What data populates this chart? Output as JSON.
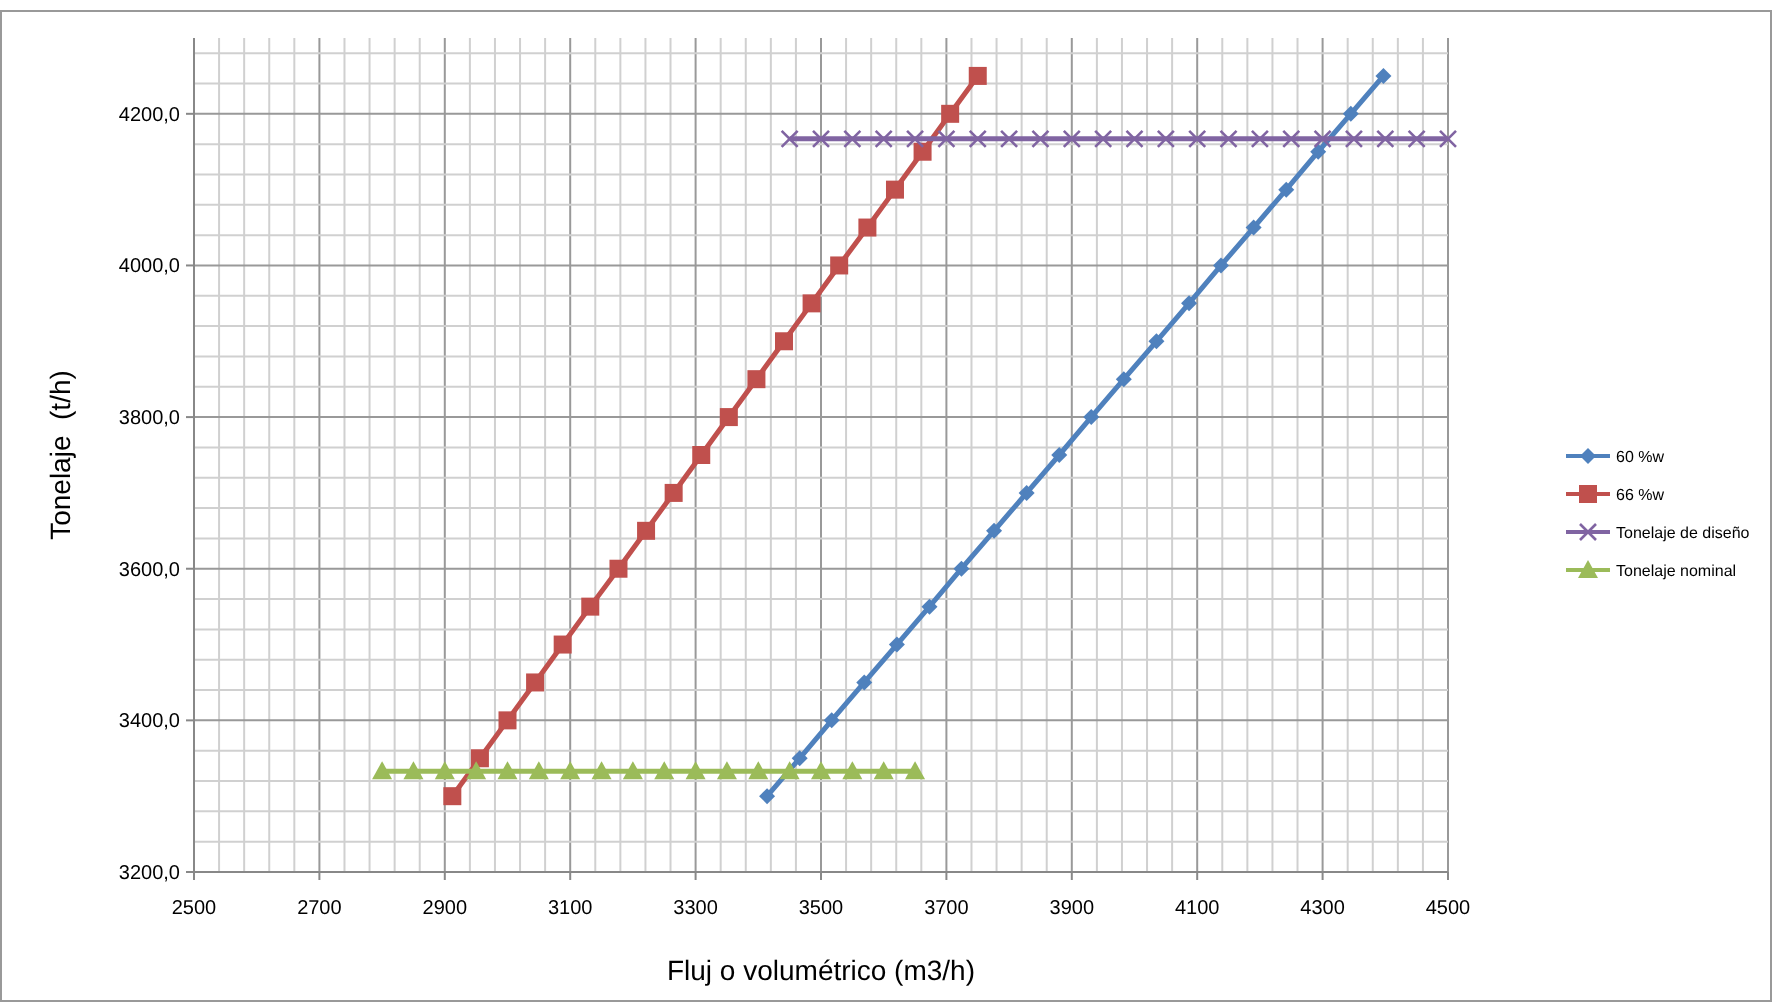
{
  "chart_data": {
    "type": "line",
    "xlabel": "Fluj o volumétrico (m3/h)",
    "ylabel": "Tonelaje  (t/h)",
    "xlim": [
      2500,
      4500
    ],
    "ylim": [
      3200,
      4300
    ],
    "xticks": [
      2500,
      {
        "value": 2540,
        "label": null
      },
      {
        "value": 2580,
        "label": null
      },
      {
        "value": 2620,
        "label": null
      },
      {
        "value": 2660,
        "label": null
      },
      2700,
      {
        "value": 2740,
        "label": null
      },
      {
        "value": 2780,
        "label": null
      },
      {
        "value": 2820,
        "label": null
      },
      {
        "value": 2860,
        "label": null
      },
      2900,
      {
        "value": 2940,
        "label": null
      },
      {
        "value": 2980,
        "label": null
      },
      {
        "value": 3020,
        "label": null
      },
      {
        "value": 3060,
        "label": null
      },
      3100,
      {
        "value": 3140,
        "label": null
      },
      {
        "value": 3180,
        "label": null
      },
      {
        "value": 3220,
        "label": null
      },
      {
        "value": 3260,
        "label": null
      },
      3300,
      {
        "value": 3340,
        "label": null
      },
      {
        "value": 3380,
        "label": null
      },
      {
        "value": 3420,
        "label": null
      },
      {
        "value": 3460,
        "label": null
      },
      3500,
      {
        "value": 3540,
        "label": null
      },
      {
        "value": 3580,
        "label": null
      },
      {
        "value": 3620,
        "label": null
      },
      {
        "value": 3660,
        "label": null
      },
      3700,
      {
        "value": 3740,
        "label": null
      },
      {
        "value": 3780,
        "label": null
      },
      {
        "value": 3820,
        "label": null
      },
      {
        "value": 3860,
        "label": null
      },
      3900,
      {
        "value": 3940,
        "label": null
      },
      {
        "value": 3980,
        "label": null
      },
      {
        "value": 4020,
        "label": null
      },
      {
        "value": 4060,
        "label": null
      },
      4100,
      {
        "value": 4140,
        "label": null
      },
      {
        "value": 4180,
        "label": null
      },
      {
        "value": 4220,
        "label": null
      },
      {
        "value": 4260,
        "label": null
      },
      4300,
      {
        "value": 4340,
        "label": null
      },
      {
        "value": 4380,
        "label": null
      },
      {
        "value": 4420,
        "label": null
      },
      {
        "value": 4460,
        "label": null
      },
      4500
    ],
    "yticks": [
      {
        "value": 3200,
        "label": "3200,0"
      },
      {
        "value": 3240,
        "label": null
      },
      {
        "value": 3280,
        "label": null
      },
      {
        "value": 3320,
        "label": null
      },
      {
        "value": 3360,
        "label": null
      },
      {
        "value": 3400,
        "label": "3400,0"
      },
      {
        "value": 3440,
        "label": null
      },
      {
        "value": 3480,
        "label": null
      },
      {
        "value": 3520,
        "label": null
      },
      {
        "value": 3560,
        "label": null
      },
      {
        "value": 3600,
        "label": "3600,0"
      },
      {
        "value": 3640,
        "label": null
      },
      {
        "value": 3680,
        "label": null
      },
      {
        "value": 3720,
        "label": null
      },
      {
        "value": 3760,
        "label": null
      },
      {
        "value": 3800,
        "label": "3800,0"
      },
      {
        "value": 3840,
        "label": null
      },
      {
        "value": 3880,
        "label": null
      },
      {
        "value": 3920,
        "label": null
      },
      {
        "value": 3960,
        "label": null
      },
      {
        "value": 4000,
        "label": "4000,0"
      },
      {
        "value": 4040,
        "label": null
      },
      {
        "value": 4080,
        "label": null
      },
      {
        "value": 4120,
        "label": null
      },
      {
        "value": 4160,
        "label": null
      },
      {
        "value": 4200,
        "label": "4200,0"
      },
      {
        "value": 4240,
        "label": null
      },
      {
        "value": 4280,
        "label": null
      }
    ],
    "grid": true,
    "legend": "right",
    "series": [
      {
        "name": "60 %w",
        "color": "#4f81bd",
        "marker": "diamond",
        "x": [
          3414,
          3466,
          3517,
          3569,
          3621,
          3673,
          3724,
          3776,
          3828,
          3880,
          3931,
          3983,
          4035,
          4087,
          4138,
          4190,
          4242,
          4293,
          4345,
          4397
        ],
        "values": [
          3300,
          3350,
          3400,
          3450,
          3500,
          3550,
          3600,
          3650,
          3700,
          3750,
          3800,
          3850,
          3900,
          3950,
          4000,
          4050,
          4100,
          4150,
          4200,
          4250
        ]
      },
      {
        "name": "66 %w",
        "color": "#c0504d",
        "marker": "square",
        "x": [
          2912,
          2956,
          3000,
          3044,
          3088,
          3132,
          3177,
          3221,
          3265,
          3309,
          3353,
          3397,
          3441,
          3485,
          3529,
          3574,
          3618,
          3662,
          3706,
          3750
        ],
        "values": [
          3300,
          3350,
          3400,
          3450,
          3500,
          3550,
          3600,
          3650,
          3700,
          3750,
          3800,
          3850,
          3900,
          3950,
          4000,
          4050,
          4100,
          4150,
          4200,
          4250
        ]
      },
      {
        "name": "Tonelaje de diseño",
        "color": "#8064a2",
        "marker": "cross",
        "x": [
          3450,
          3500,
          3550,
          3600,
          3650,
          3700,
          3750,
          3800,
          3850,
          3900,
          3950,
          4000,
          4050,
          4100,
          4150,
          4200,
          4250,
          4300,
          4350,
          4400,
          4450,
          4500
        ],
        "values": [
          4167,
          4167,
          4167,
          4167,
          4167,
          4167,
          4167,
          4167,
          4167,
          4167,
          4167,
          4167,
          4167,
          4167,
          4167,
          4167,
          4167,
          4167,
          4167,
          4167,
          4167,
          4167
        ]
      },
      {
        "name": "Tonelaje nominal",
        "color": "#9bbb59",
        "marker": "triangle",
        "x": [
          2800,
          2850,
          2900,
          2950,
          3000,
          3050,
          3100,
          3150,
          3200,
          3250,
          3300,
          3350,
          3400,
          3450,
          3500,
          3550,
          3600,
          3650
        ],
        "values": [
          3333,
          3333,
          3333,
          3333,
          3333,
          3333,
          3333,
          3333,
          3333,
          3333,
          3333,
          3333,
          3333,
          3333,
          3333,
          3333,
          3333,
          3333
        ]
      }
    ]
  }
}
